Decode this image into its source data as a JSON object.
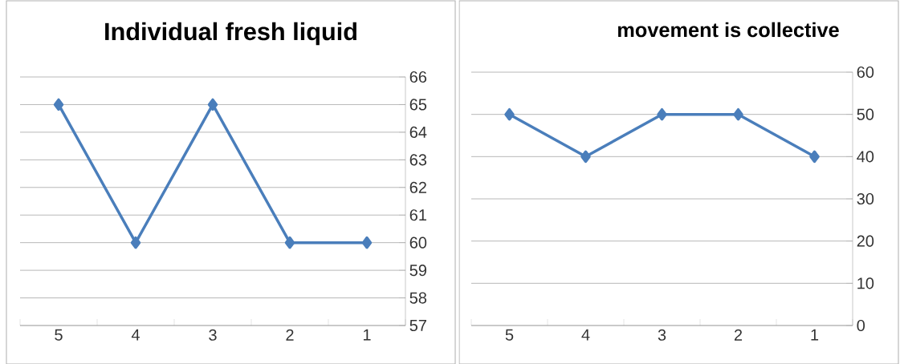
{
  "chart_data": [
    {
      "type": "line",
      "title": "Individual fresh liquid",
      "categories": [
        "5",
        "4",
        "3",
        "2",
        "1"
      ],
      "values": [
        65,
        60,
        65,
        60,
        60
      ],
      "color": "#4a7ebb",
      "ylim": [
        57,
        66
      ],
      "yticks": [
        57,
        58,
        59,
        60,
        61,
        62,
        63,
        64,
        65,
        66
      ],
      "grid": "y",
      "marker": "diamond",
      "line_style": "solid"
    },
    {
      "type": "line",
      "title": "movement is collective",
      "categories": [
        "5",
        "4",
        "3",
        "2",
        "1"
      ],
      "values": [
        50,
        40,
        50,
        50,
        40
      ],
      "color": "#4a7ebb",
      "ylim": [
        0,
        60
      ],
      "yticks": [
        0,
        10,
        20,
        30,
        40,
        50,
        60
      ],
      "grid": "y",
      "marker": "diamond",
      "line_style": "solid"
    }
  ]
}
